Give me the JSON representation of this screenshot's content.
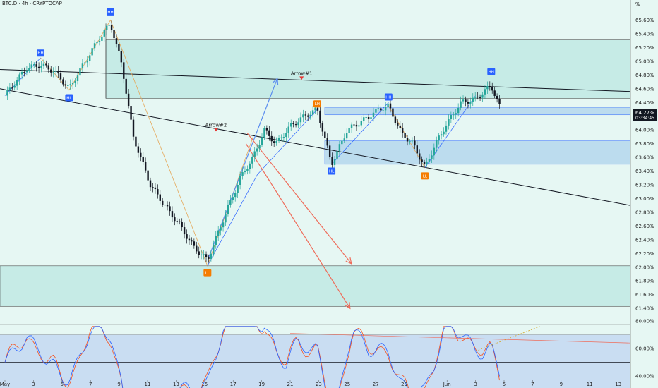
{
  "header": {
    "title": "BTC.D · 4h · CRYPTOCAP",
    "percent_sign": "%"
  },
  "price_box": {
    "value": "64.27%",
    "countdown": "03:34:45",
    "color": "#131722"
  },
  "chart_data": [
    {
      "type": "candlestick",
      "symbol": "BTC.D",
      "timeframe": "4h",
      "x_ticks": [
        "May",
        "3",
        "5",
        "7",
        "9",
        "11",
        "13",
        "15",
        "17",
        "19",
        "21",
        "23",
        "25",
        "27",
        "29",
        "Jun",
        "3",
        "5",
        "7",
        "9",
        "11",
        "13"
      ],
      "y_ticks": [
        "65.60%",
        "65.40%",
        "65.20%",
        "65.00%",
        "64.80%",
        "64.60%",
        "64.40%",
        "64.20%",
        "64.00%",
        "63.80%",
        "63.60%",
        "63.40%",
        "63.20%",
        "63.00%",
        "62.80%",
        "62.60%",
        "62.40%",
        "62.20%",
        "62.00%",
        "61.80%",
        "61.60%",
        "61.40%"
      ],
      "ylim": [
        61.3,
        65.75
      ],
      "colors": {
        "up": "#26a69a",
        "down": "#131722",
        "background": "#e6f7f3",
        "zone": "#c6ebe6"
      },
      "close_price": 64.27,
      "swing_labels": [
        {
          "text": "HH",
          "kind": "high",
          "color": "#2962ff",
          "day": 7.4,
          "price": 65.72
        },
        {
          "text": "HH",
          "kind": "high",
          "color": "#2962ff",
          "day": 2.5,
          "price": 65.12
        },
        {
          "text": "HL",
          "kind": "low",
          "color": "#2962ff",
          "day": 4.5,
          "price": 64.47
        },
        {
          "text": "LL",
          "kind": "low",
          "color": "#f57c00",
          "day": 14.2,
          "price": 61.92
        },
        {
          "text": "LH",
          "kind": "high",
          "color": "#f57c00",
          "day": 21.9,
          "price": 64.38
        },
        {
          "text": "HL",
          "kind": "low",
          "color": "#2962ff",
          "day": 22.9,
          "price": 63.4
        },
        {
          "text": "HH",
          "kind": "high",
          "color": "#2962ff",
          "day": 26.9,
          "price": 64.48
        },
        {
          "text": "LL",
          "kind": "low",
          "color": "#f57c00",
          "day": 29.45,
          "price": 63.33
        },
        {
          "text": "HH",
          "kind": "high",
          "color": "#2962ff",
          "day": 34.1,
          "price": 64.85
        }
      ],
      "annotations": [
        {
          "text": "Arrow#1",
          "day": 20.8,
          "price": 64.8
        },
        {
          "text": "Arrow#2",
          "day": 14.8,
          "price": 64.05
        }
      ]
    },
    {
      "type": "line",
      "indicator": "oscillator",
      "y_ticks": [
        "80.00%",
        "60.00%",
        "40.00%"
      ],
      "ylim": [
        25,
        85
      ],
      "colors": {
        "line": "#2962ff",
        "signal": "#f4511e",
        "band": "#c9ddf2"
      },
      "levels": {
        "upper": 70,
        "middle": 50,
        "lower": 30
      }
    }
  ]
}
